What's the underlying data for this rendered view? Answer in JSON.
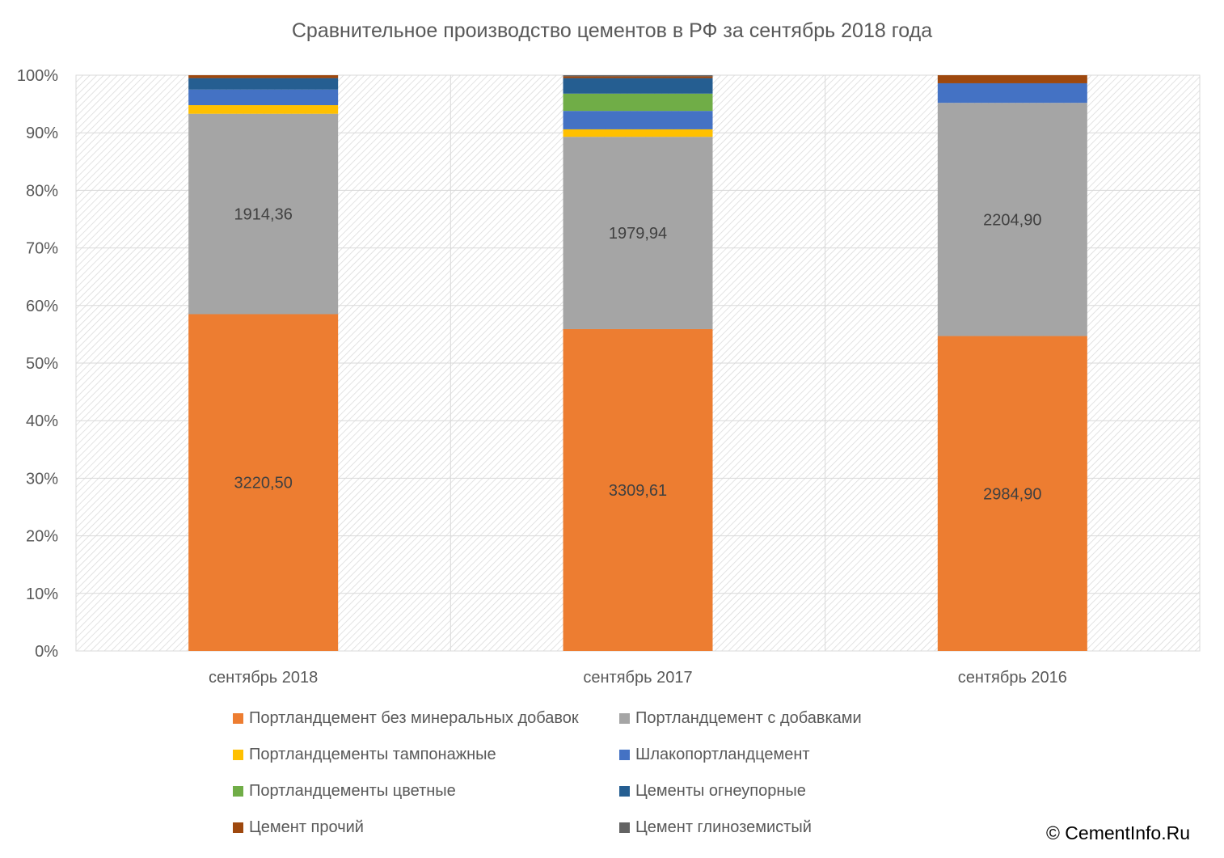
{
  "chart_data": {
    "type": "bar",
    "stacked": "percent",
    "title": "Сравнительное производство цементов в РФ за сентябрь 2018 года",
    "categories": [
      "сентябрь 2018",
      "сентябрь 2017",
      "сентябрь 2016"
    ],
    "yticks": [
      "0%",
      "10%",
      "20%",
      "30%",
      "40%",
      "50%",
      "60%",
      "70%",
      "80%",
      "90%",
      "100%"
    ],
    "ylim": [
      0,
      100
    ],
    "grid": true,
    "legend_position": "bottom",
    "series": [
      {
        "name": "Портландцемент без минеральных добавок",
        "color": "#ED7D31",
        "values": [
          58.5,
          55.9,
          54.7
        ],
        "labels": [
          "3220,50",
          "3309,61",
          "2984,90"
        ]
      },
      {
        "name": "Портландцемент с добавками",
        "color": "#A5A5A5",
        "values": [
          34.8,
          33.4,
          40.5
        ],
        "labels": [
          "1914,36",
          "1979,94",
          "2204,90"
        ]
      },
      {
        "name": "Портландцементы тампонажные",
        "color": "#FFC000",
        "values": [
          1.5,
          1.3,
          0.0
        ],
        "labels": [
          "",
          "",
          ""
        ]
      },
      {
        "name": "Шлакопортландцемент",
        "color": "#4472C4",
        "values": [
          2.7,
          3.2,
          3.4
        ],
        "labels": [
          "",
          "",
          ""
        ]
      },
      {
        "name": "Портландцементы цветные",
        "color": "#70AD47",
        "values": [
          0.0,
          3.0,
          0.0
        ],
        "labels": [
          "",
          "",
          ""
        ]
      },
      {
        "name": "Цементы огнеупорные",
        "color": "#255E91",
        "values": [
          2.0,
          2.7,
          0.0
        ],
        "labels": [
          "",
          "",
          ""
        ]
      },
      {
        "name": "Цемент прочий",
        "color": "#9E480E",
        "values": [
          0.5,
          0.3,
          1.4
        ],
        "labels": [
          "",
          "",
          ""
        ]
      },
      {
        "name": "Цемент глиноземистый",
        "color": "#636363",
        "values": [
          0.0,
          0.2,
          0.0
        ],
        "labels": [
          "",
          "",
          ""
        ]
      }
    ]
  },
  "copyright": "© CementInfo.Ru"
}
